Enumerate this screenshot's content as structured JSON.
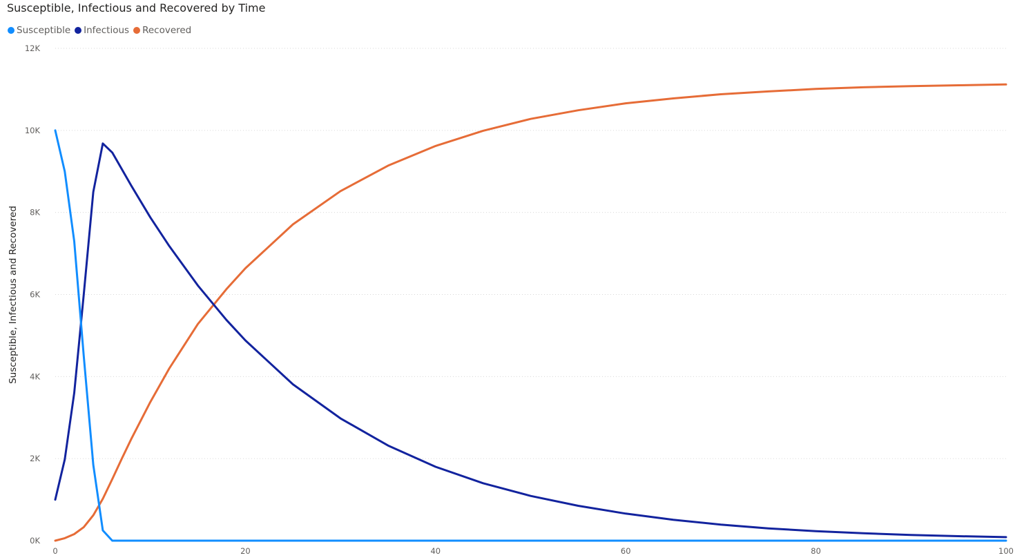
{
  "chart_data": {
    "type": "line",
    "title": "Susceptible, Infectious and Recovered by Time",
    "xlabel": "",
    "ylabel": "Susceptible, Infectious and Recovered",
    "xlim": [
      0,
      100
    ],
    "ylim": [
      0,
      12000
    ],
    "x_ticks": [
      0,
      20,
      40,
      60,
      80,
      100
    ],
    "y_ticks": [
      {
        "value": 0,
        "label": "0K"
      },
      {
        "value": 2000,
        "label": "2K"
      },
      {
        "value": 4000,
        "label": "4K"
      },
      {
        "value": 6000,
        "label": "6K"
      },
      {
        "value": 8000,
        "label": "8K"
      },
      {
        "value": 10000,
        "label": "10K"
      },
      {
        "value": 12000,
        "label": "12K"
      }
    ],
    "grid": "horizontal-dotted",
    "legend_position": "top-left",
    "series": [
      {
        "name": "Susceptible",
        "color": "#118DFF",
        "x": [
          0,
          1,
          2,
          3,
          4,
          5,
          6,
          10,
          20,
          40,
          60,
          80,
          100
        ],
        "y": [
          10000,
          9000,
          7300,
          4500,
          1850,
          250,
          0,
          0,
          0,
          0,
          0,
          0,
          0
        ]
      },
      {
        "name": "Infectious",
        "color": "#12239E",
        "x": [
          0,
          1,
          2,
          3,
          4,
          5,
          6,
          8,
          10,
          12,
          15,
          18,
          20,
          25,
          30,
          35,
          40,
          45,
          50,
          55,
          60,
          65,
          70,
          75,
          80,
          85,
          90,
          95,
          100
        ],
        "y": [
          1000,
          1980,
          3600,
          6000,
          8500,
          9680,
          9460,
          8650,
          7880,
          7180,
          6220,
          5380,
          4880,
          3810,
          2980,
          2320,
          1800,
          1400,
          1090,
          850,
          660,
          510,
          390,
          300,
          230,
          180,
          140,
          110,
          85
        ]
      },
      {
        "name": "Recovered",
        "color": "#E66C37",
        "x": [
          0,
          1,
          2,
          3,
          4,
          5,
          6,
          7,
          8,
          10,
          12,
          15,
          18,
          20,
          25,
          30,
          35,
          40,
          45,
          50,
          55,
          60,
          65,
          70,
          75,
          80,
          85,
          90,
          95,
          100
        ],
        "y": [
          0,
          60,
          160,
          330,
          620,
          1020,
          1500,
          2000,
          2480,
          3380,
          4200,
          5280,
          6130,
          6640,
          7710,
          8520,
          9140,
          9620,
          9990,
          10280,
          10490,
          10660,
          10780,
          10880,
          10950,
          11010,
          11050,
          11080,
          11100,
          11120
        ]
      }
    ]
  }
}
